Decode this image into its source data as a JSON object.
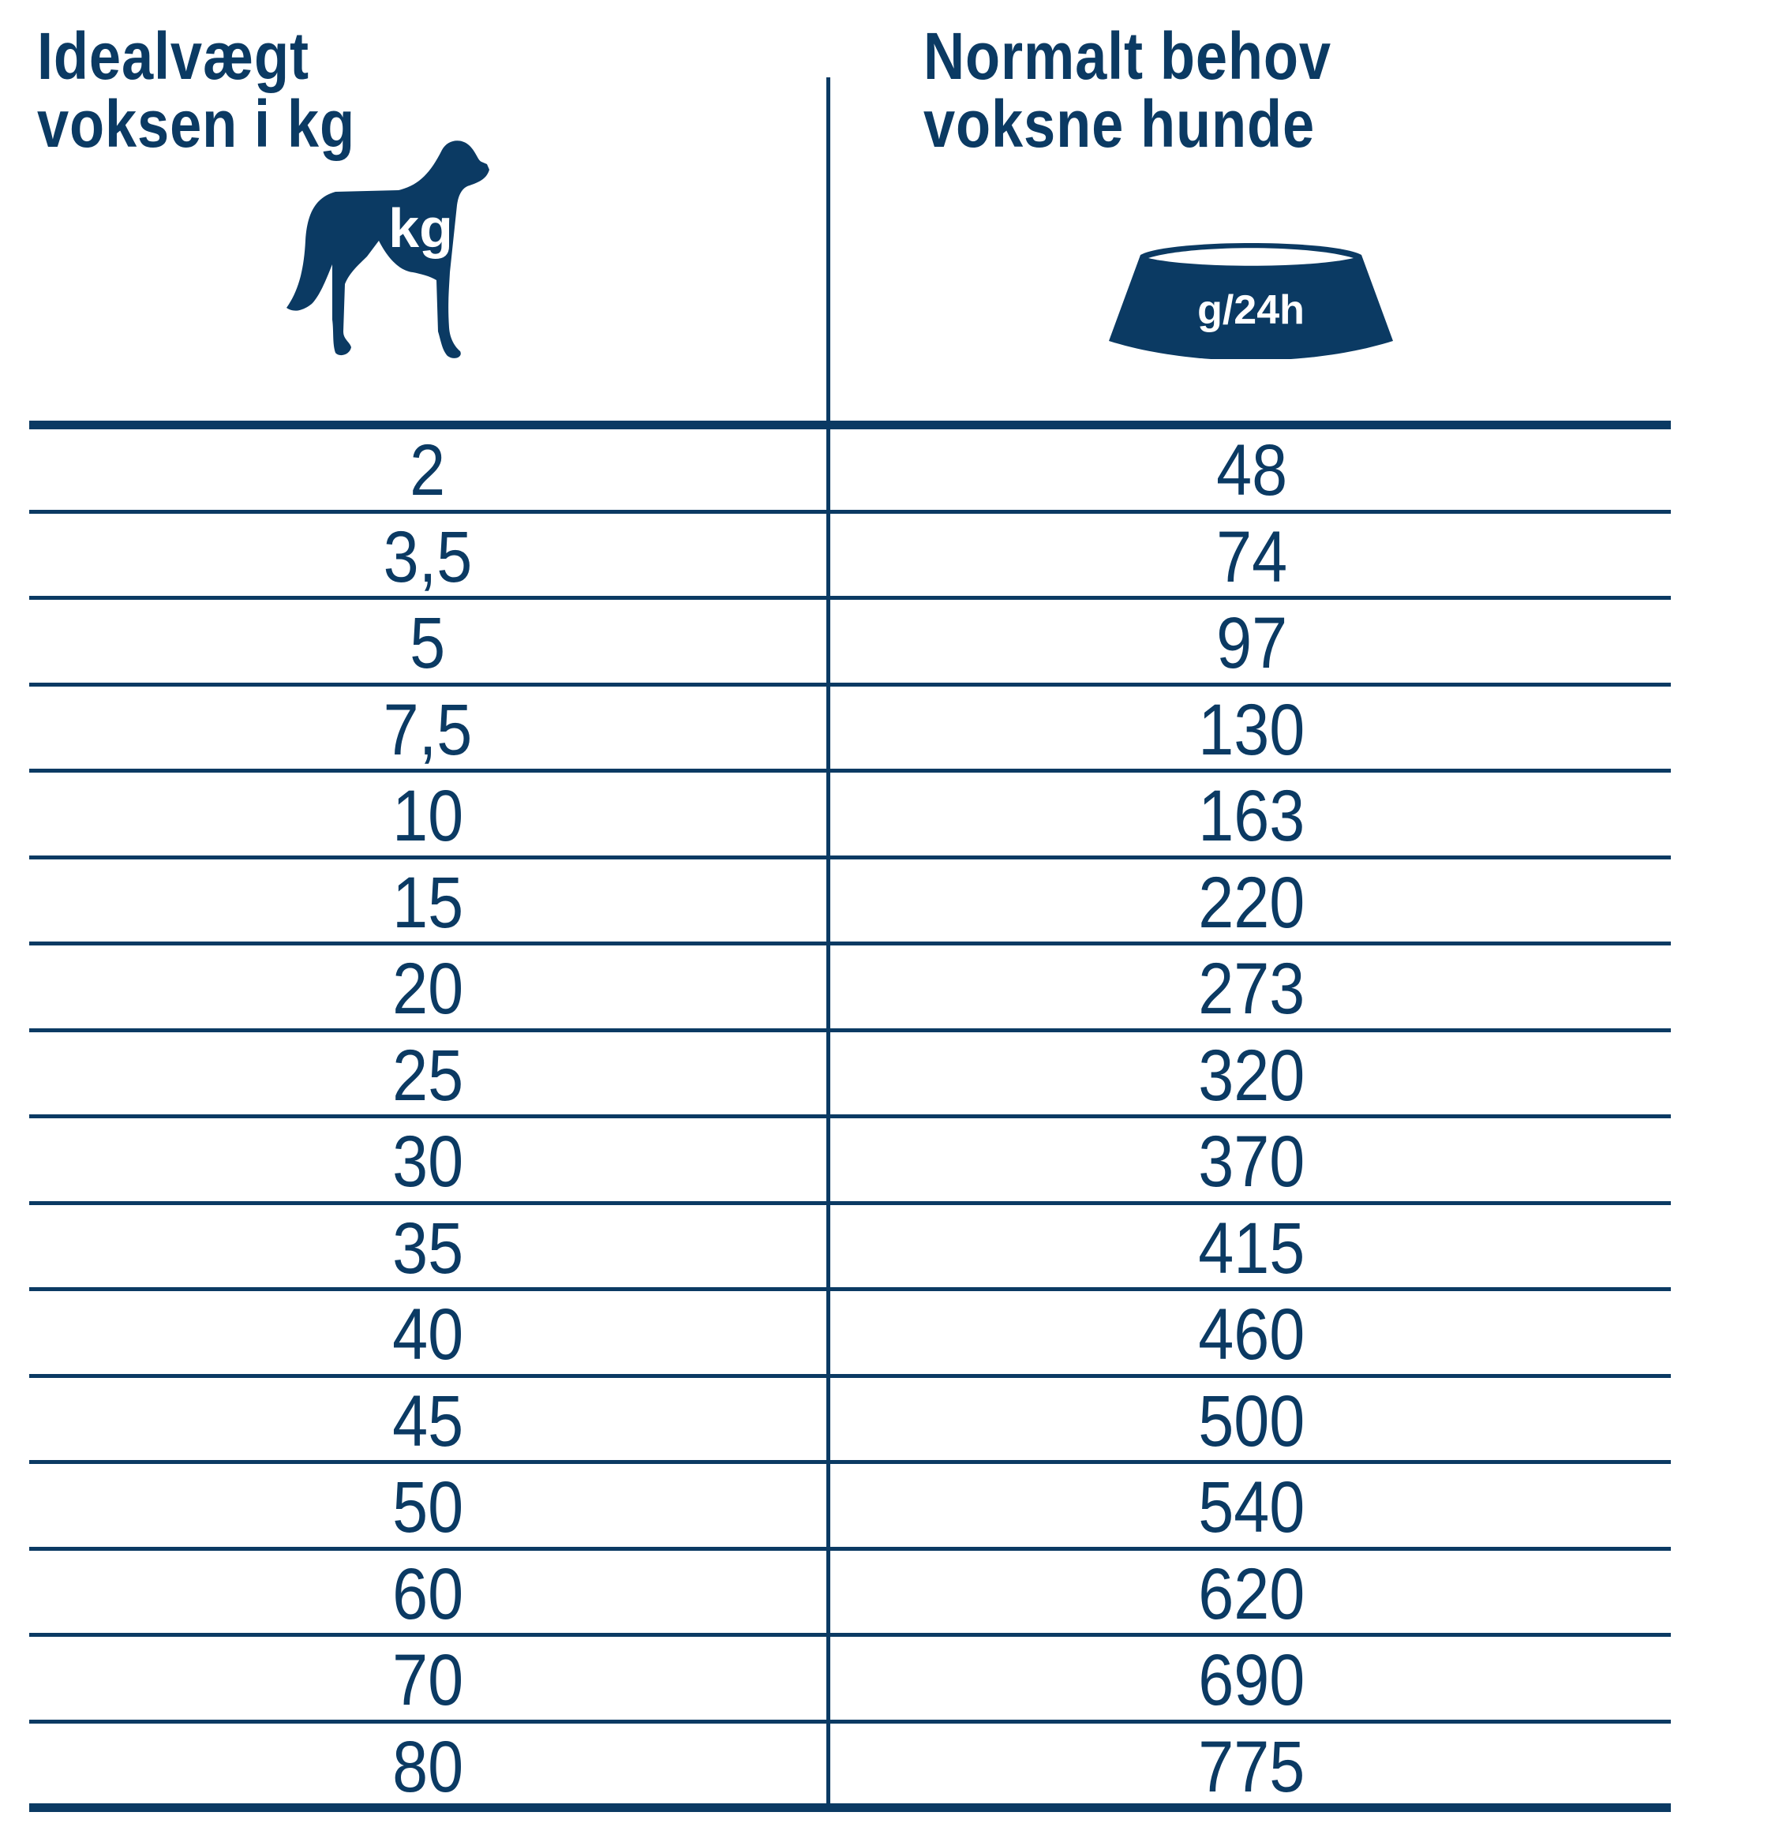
{
  "headers": {
    "left": {
      "line1": "Idealvægt",
      "line2": "voksen i kg",
      "icon": "dog-icon",
      "icon_label": "kg"
    },
    "right": {
      "line1": "Normalt behov",
      "line2": "voksne hunde",
      "icon": "food-bowl-icon",
      "icon_label": "g/24h"
    }
  },
  "rows": [
    {
      "weight": "2",
      "amount": "48"
    },
    {
      "weight": "3,5",
      "amount": "74"
    },
    {
      "weight": "5",
      "amount": "97"
    },
    {
      "weight": "7,5",
      "amount": "130"
    },
    {
      "weight": "10",
      "amount": "163"
    },
    {
      "weight": "15",
      "amount": "220"
    },
    {
      "weight": "20",
      "amount": "273"
    },
    {
      "weight": "25",
      "amount": "320"
    },
    {
      "weight": "30",
      "amount": "370"
    },
    {
      "weight": "35",
      "amount": "415"
    },
    {
      "weight": "40",
      "amount": "460"
    },
    {
      "weight": "45",
      "amount": "500"
    },
    {
      "weight": "50",
      "amount": "540"
    },
    {
      "weight": "60",
      "amount": "620"
    },
    {
      "weight": "70",
      "amount": "690"
    },
    {
      "weight": "80",
      "amount": "775"
    }
  ],
  "colors": {
    "primary": "#0b3a63",
    "background": "#ffffff"
  }
}
